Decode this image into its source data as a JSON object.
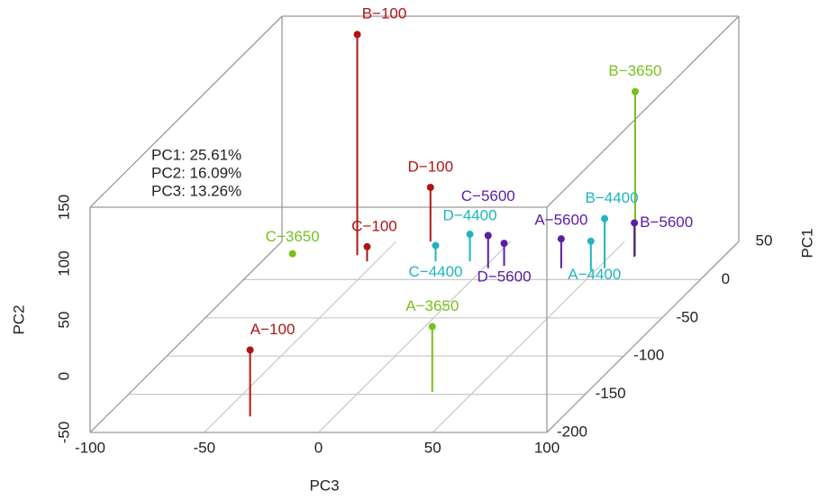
{
  "chart_data": {
    "type": "scatter3d",
    "xlabel": "PC3",
    "ylabel": "PC1",
    "zlabel": "PC2",
    "annotations": [
      "PC1: 25.61%",
      "PC2: 16.09%",
      "PC3: 13.26%"
    ],
    "xlim": [
      -100,
      100
    ],
    "xticks": [
      -100,
      -50,
      0,
      50,
      100
    ],
    "ylim": [
      -200,
      50
    ],
    "yticks": [
      -200,
      -150,
      -100,
      -50,
      0,
      50
    ],
    "zlim": [
      -50,
      150
    ],
    "zticks": [
      -50,
      0,
      50,
      100,
      150
    ],
    "grid": true,
    "series": [
      {
        "color": "#b01414",
        "labels": [
          "A−100",
          "B−100",
          "C−100",
          "D−100"
        ],
        "x": [
          -37,
          -61,
          -54,
          -35
        ],
        "y": [
          -179,
          32,
          24,
          50
        ],
        "z": [
          9,
          146,
          -37,
          -2
        ]
      },
      {
        "color": "#76c11d",
        "labels": [
          "A−3650",
          "B−3650",
          "C−3650"
        ],
        "x": [
          32,
          61,
          -89
        ],
        "y": [
          -147,
          31,
          31
        ],
        "z": [
          8,
          96,
          -48
        ]
      },
      {
        "color": "#1fb5bd",
        "labels": [
          "A−4400",
          "B−4400",
          "C−4400",
          "D−4400"
        ],
        "x": [
          48,
          53,
          -24,
          -9
        ],
        "y": [
          12,
          15,
          24,
          24
        ],
        "z": [
          -24,
          -6,
          -36,
          -26
        ]
      },
      {
        "color": "#5b1ba6",
        "labels": [
          "A−5600",
          "B−5600",
          "C−5600",
          "D−5600"
        ],
        "x": [
          34,
          61,
          2,
          8
        ],
        "y": [
          15,
          30,
          15,
          18
        ],
        "z": [
          -24,
          -20,
          -21,
          -30
        ]
      }
    ]
  }
}
